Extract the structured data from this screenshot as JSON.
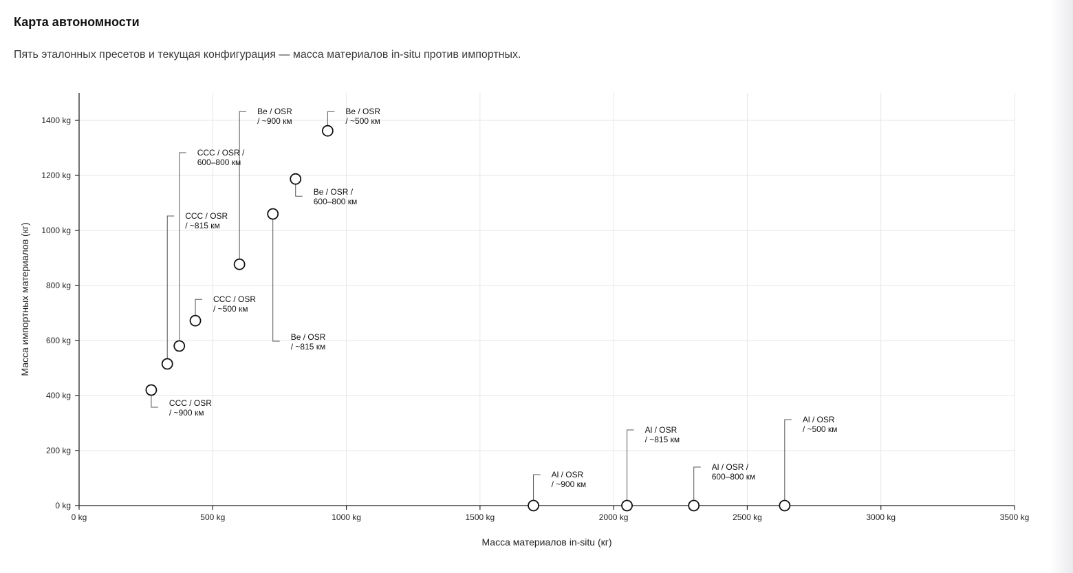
{
  "header": {
    "title": "Карта автономности",
    "subtitle": "Пять эталонных пресетов и текущая конфигурация — масса материалов in-situ против импортных."
  },
  "colors": {
    "grid": "#e6e6ea",
    "axis": "#222222",
    "marker": "#111111",
    "leader": "#555555"
  },
  "chart_data": {
    "type": "scatter",
    "title": "",
    "xlabel": "Масса материалов in-situ (кг)",
    "ylabel": "Масса импортных материалов (кг)",
    "xlim": [
      0,
      3500
    ],
    "ylim": [
      0,
      1500
    ],
    "grid": true,
    "legend": "none",
    "xticks": [
      0,
      500,
      1000,
      1500,
      2000,
      2500,
      3000,
      3500
    ],
    "yticks": [
      0,
      200,
      400,
      600,
      800,
      1000,
      1200,
      1400
    ],
    "xtick_labels": [
      "0 kg",
      "500 kg",
      "1000 kg",
      "1500 kg",
      "2000 kg",
      "2500 kg",
      "3000 kg",
      "3500 kg"
    ],
    "ytick_labels": [
      "0 kg",
      "200 kg",
      "400 kg",
      "600 kg",
      "800 kg",
      "1000 kg",
      "1200 kg",
      "1400 kg"
    ],
    "points": [
      {
        "x": 270,
        "y": 420,
        "label": [
          "CCC / OSR",
          "/ ~900 км"
        ]
      },
      {
        "x": 330,
        "y": 515,
        "label": [
          "CCC / OSR",
          "/ ~815 км"
        ]
      },
      {
        "x": 375,
        "y": 580,
        "label": [
          "CCC / OSR /",
          "600–800 км"
        ]
      },
      {
        "x": 435,
        "y": 672,
        "label": [
          "CCC / OSR",
          "/ ~500 км"
        ]
      },
      {
        "x": 600,
        "y": 877,
        "label": [
          "Be / OSR",
          "/ ~900 км"
        ]
      },
      {
        "x": 725,
        "y": 1060,
        "label": [
          "Be / OSR",
          "/ ~815 км"
        ]
      },
      {
        "x": 810,
        "y": 1187,
        "label": [
          "Be / OSR /",
          "600–800 км"
        ]
      },
      {
        "x": 930,
        "y": 1362,
        "label": [
          "Be / OSR",
          "/ ~500 км"
        ]
      },
      {
        "x": 1700,
        "y": 0,
        "label": [
          "Al / OSR",
          "/ ~900 км"
        ]
      },
      {
        "x": 2050,
        "y": 0,
        "label": [
          "Al / OSR",
          "/ ~815 км"
        ]
      },
      {
        "x": 2300,
        "y": 0,
        "label": [
          "Al / OSR /",
          "600–800 км"
        ]
      },
      {
        "x": 2640,
        "y": 0,
        "label": [
          "Al / OSR",
          "/ ~500 км"
        ]
      }
    ]
  }
}
